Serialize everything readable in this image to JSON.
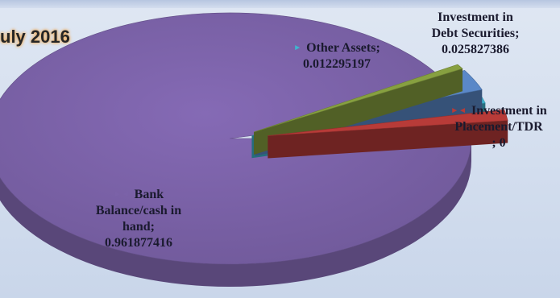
{
  "title": "uly 2016",
  "chart_data": {
    "type": "pie",
    "style": "3d-exploded",
    "slices": [
      {
        "label": "Bank Balance/cash in hand",
        "value": 0.961877416,
        "color": "#7b62a8",
        "text_lines": [
          "Bank",
          "Balance/cash in",
          "hand;",
          "0.961877416"
        ]
      },
      {
        "label": "Other Assets",
        "value": 0.012295197,
        "color": "#3fb6cf",
        "text_lines": [
          "Other Assets;",
          "0.012295197"
        ]
      },
      {
        "label": "Investment in Debt Securities",
        "value": 0.025827386,
        "color": "#5a88c8",
        "text_lines": [
          "Investment in",
          "Debt Securities;",
          "0.025827386"
        ]
      },
      {
        "label": "Investment in Placement/TDR",
        "value": 0,
        "color": "#b83b38",
        "text_lines": [
          "Investment in",
          "Placement/TDR",
          "; 0"
        ]
      }
    ],
    "extra_wedge_color": "#87a040",
    "legend_markers": true
  }
}
